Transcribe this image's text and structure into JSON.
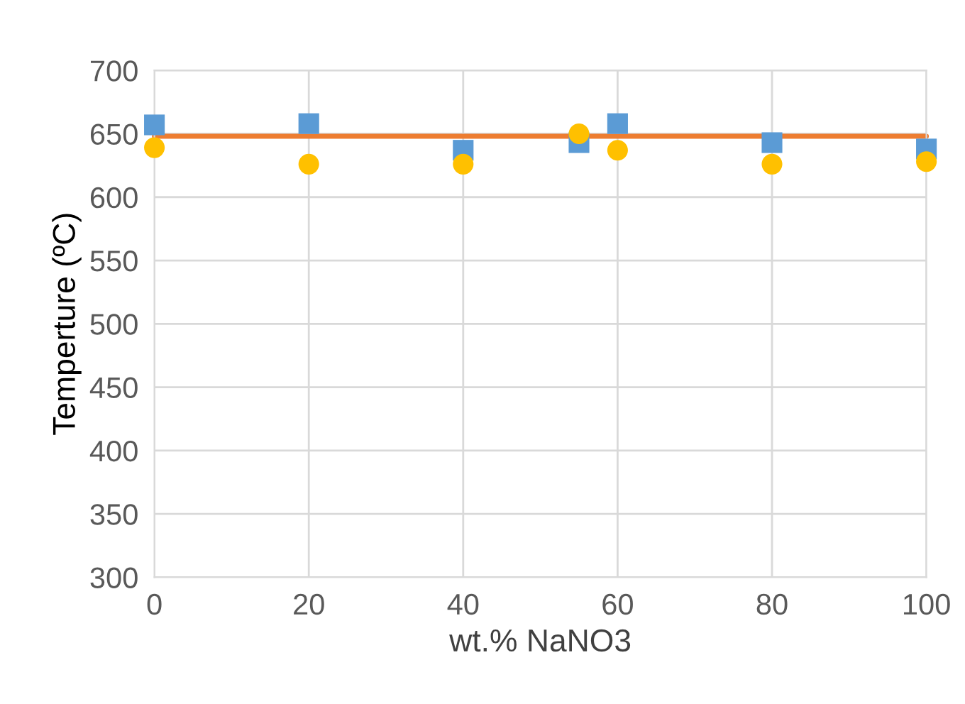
{
  "chart_data": {
    "type": "scatter",
    "xlabel": "wt.% NaNO3",
    "ylabel": "Temperture (ºC)",
    "xlim": [
      0,
      100
    ],
    "ylim": [
      300,
      700
    ],
    "xticks": [
      0,
      20,
      40,
      60,
      80,
      100
    ],
    "yticks": [
      300,
      350,
      400,
      450,
      500,
      550,
      600,
      650,
      700
    ],
    "grid": true,
    "legend": false,
    "series": [
      {
        "type": "line",
        "color": "#ed7d31",
        "x": [
          0,
          100
        ],
        "values": [
          648,
          648
        ],
        "marker": "none"
      },
      {
        "color": "#5b9bd5",
        "marker": "square",
        "x": [
          0,
          20,
          40,
          55,
          60,
          80,
          100
        ],
        "values": [
          657,
          658,
          637,
          643,
          658,
          643,
          638
        ]
      },
      {
        "color": "#ffc000",
        "marker": "circle",
        "x": [
          0,
          20,
          40,
          55,
          60,
          80,
          100
        ],
        "values": [
          639,
          626,
          626,
          650,
          637,
          626,
          628
        ]
      }
    ]
  }
}
